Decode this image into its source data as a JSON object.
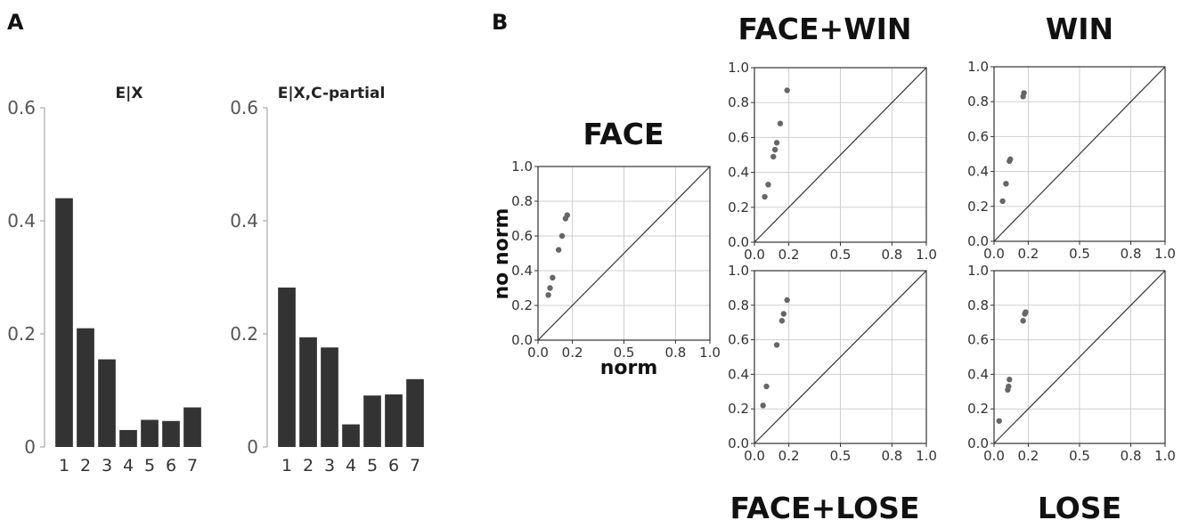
{
  "panel_labels": [
    "A",
    "B"
  ],
  "chart_data": [
    {
      "type": "bar",
      "title": "E|X",
      "categories": [
        "1",
        "2",
        "3",
        "4",
        "5",
        "6",
        "7"
      ],
      "values": [
        0.44,
        0.21,
        0.155,
        0.03,
        0.048,
        0.046,
        0.07
      ],
      "ylim": [
        0,
        0.6
      ],
      "yticks": [
        "0",
        "0.2",
        "0.4",
        "0.6"
      ],
      "color": "#333333"
    },
    {
      "type": "bar",
      "title": "E|X,C-partial",
      "categories": [
        "1",
        "2",
        "3",
        "4",
        "5",
        "6",
        "7"
      ],
      "values": [
        0.282,
        0.194,
        0.176,
        0.04,
        0.091,
        0.093,
        0.12
      ],
      "ylim": [
        0,
        0.6
      ],
      "yticks": [
        "0",
        "0.2",
        "0.4",
        "0.6"
      ],
      "color": "#333333"
    },
    {
      "type": "scatter",
      "title": "FACE",
      "xlabel": "norm",
      "ylabel": "no norm",
      "xlim": [
        0,
        1
      ],
      "ylim": [
        0,
        1
      ],
      "xticks": [
        "0.0",
        "0.2",
        "0.5",
        "0.8",
        "1.0"
      ],
      "yticks": [
        "0.0",
        "0.2",
        "0.4",
        "0.6",
        "0.8",
        "1.0"
      ],
      "diagonal": true,
      "grid": true,
      "x": [
        0.06,
        0.07,
        0.085,
        0.12,
        0.14,
        0.16,
        0.17
      ],
      "y": [
        0.26,
        0.3,
        0.36,
        0.52,
        0.6,
        0.7,
        0.72
      ]
    },
    {
      "type": "scatter",
      "title": "FACE+WIN",
      "xlim": [
        0,
        1
      ],
      "ylim": [
        0,
        1
      ],
      "xticks": [
        "0.0",
        "0.2",
        "0.5",
        "0.8",
        "1.0"
      ],
      "yticks": [
        "0.0",
        "0.2",
        "0.4",
        "0.6",
        "0.8",
        "1.0"
      ],
      "diagonal": true,
      "grid": true,
      "x": [
        0.06,
        0.08,
        0.11,
        0.12,
        0.13,
        0.15,
        0.19
      ],
      "y": [
        0.26,
        0.33,
        0.49,
        0.53,
        0.57,
        0.68,
        0.87
      ]
    },
    {
      "type": "scatter",
      "title": "WIN",
      "xlim": [
        0,
        1
      ],
      "ylim": [
        0,
        1
      ],
      "xticks": [
        "0.0",
        "0.2",
        "0.5",
        "0.8",
        "1.0"
      ],
      "yticks": [
        "0.0",
        "0.2",
        "0.4",
        "0.6",
        "0.8",
        "1.0"
      ],
      "diagonal": true,
      "grid": true,
      "x": [
        0.05,
        0.07,
        0.09,
        0.095,
        0.17,
        0.175
      ],
      "y": [
        0.23,
        0.33,
        0.46,
        0.47,
        0.83,
        0.85
      ]
    },
    {
      "type": "scatter",
      "title": "FACE+LOSE",
      "xlim": [
        0,
        1
      ],
      "ylim": [
        0,
        1
      ],
      "xticks": [
        "0.0",
        "0.2",
        "0.5",
        "0.8",
        "1.0"
      ],
      "yticks": [
        "0.0",
        "0.2",
        "0.4",
        "0.6",
        "0.8",
        "1.0"
      ],
      "diagonal": true,
      "grid": true,
      "x": [
        0.05,
        0.07,
        0.13,
        0.16,
        0.17,
        0.19
      ],
      "y": [
        0.22,
        0.33,
        0.57,
        0.71,
        0.75,
        0.83
      ]
    },
    {
      "type": "scatter",
      "title": "LOSE",
      "xlim": [
        0,
        1
      ],
      "ylim": [
        0,
        1
      ],
      "xticks": [
        "0.0",
        "0.2",
        "0.5",
        "0.8",
        "1.0"
      ],
      "yticks": [
        "0.0",
        "0.2",
        "0.4",
        "0.6",
        "0.8",
        "1.0"
      ],
      "diagonal": true,
      "grid": true,
      "x": [
        0.03,
        0.08,
        0.085,
        0.09,
        0.17,
        0.18,
        0.185
      ],
      "y": [
        0.13,
        0.31,
        0.33,
        0.37,
        0.71,
        0.75,
        0.76
      ]
    }
  ]
}
